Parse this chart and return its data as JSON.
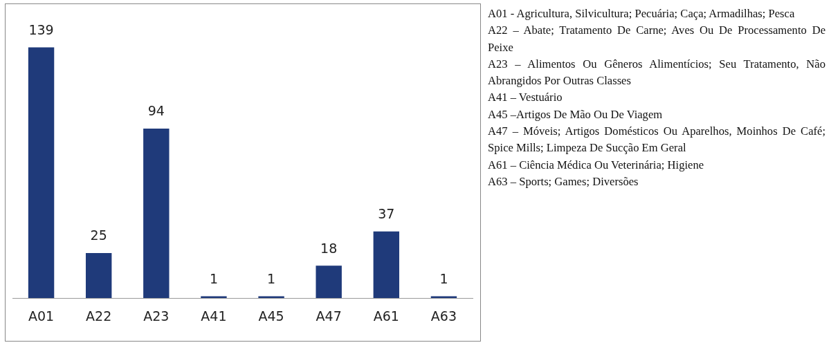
{
  "chart_data": {
    "type": "bar",
    "categories": [
      "A01",
      "A22",
      "A23",
      "A41",
      "A45",
      "A47",
      "A61",
      "A63"
    ],
    "values": [
      139,
      25,
      94,
      1,
      1,
      18,
      37,
      1
    ],
    "color": "#1f3a7a",
    "data_labels": true,
    "grid": false,
    "legend": false,
    "tick_labels": "x",
    "annotations": [
      "A01 - Agricultura, Silvicultura; Pecuária; Caça; Armadilhas; Pesca",
      "A22 – Abate; Tratamento De Carne; Aves Ou De Processamento De Peixe",
      "A23 – Alimentos Ou Gêneros Alimentícios; Seu Tratamento, Não Abrangidos Por Outras Classes",
      "A41 – Vestuário",
      "A45 –Artigos De Mão Ou De Viagem",
      "A47 – Móveis; Artigos Domésticos Ou Aparelhos, Moinhos De Café; Spice Mills; Limpeza De Sucção Em Geral",
      "A61 – Ciência Médica Ou Veterinária; Higiene",
      "A63 – Sports; Games; Diversões"
    ]
  }
}
